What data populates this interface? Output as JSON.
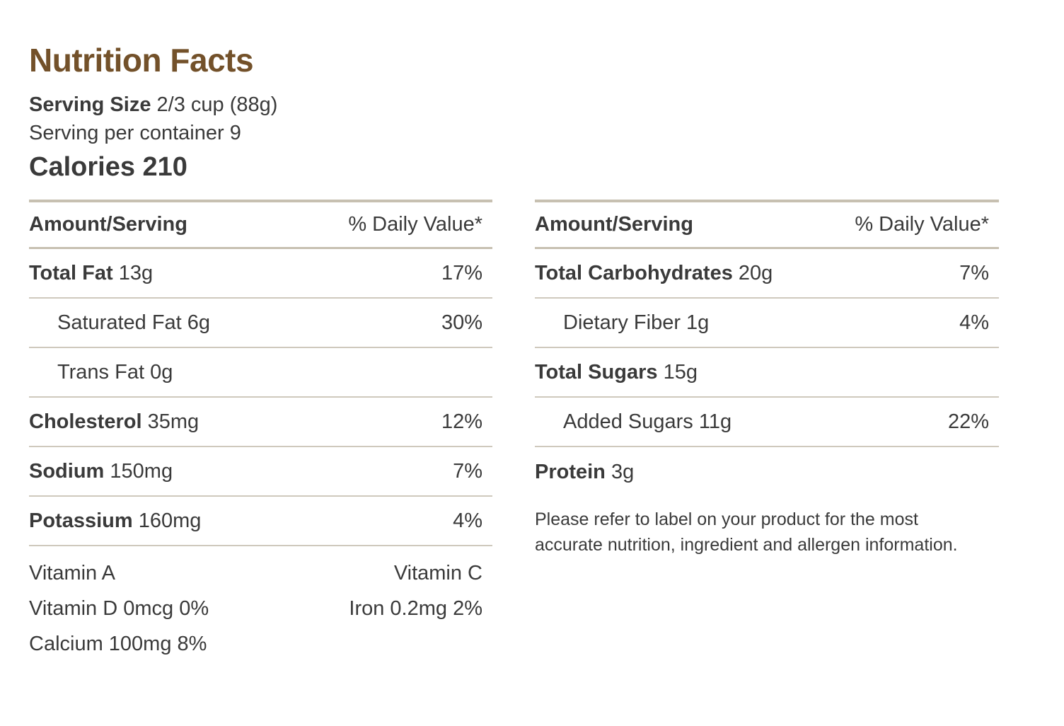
{
  "title": "Nutrition Facts",
  "serving": {
    "size_label": "Serving Size",
    "size_value": "2/3 cup (88g)",
    "per_container": "Serving per container 9"
  },
  "calories": "Calories 210",
  "header": {
    "amount_label": "Amount/Serving",
    "dv_label": "% Daily Value*"
  },
  "left_rows": [
    {
      "name": "Total Fat",
      "amount": "13g",
      "dv": "17%"
    },
    {
      "name": "Saturated Fat 6g",
      "amount": "",
      "dv": "30%"
    },
    {
      "name": "Trans Fat 0g",
      "amount": "",
      "dv": ""
    },
    {
      "name": "Cholesterol",
      "amount": "35mg",
      "dv": "12%"
    },
    {
      "name": "Sodium",
      "amount": "150mg",
      "dv": "7%"
    },
    {
      "name": "Potassium",
      "amount": "160mg",
      "dv": "4%"
    }
  ],
  "right_rows": [
    {
      "name": "Total Carbohydrates",
      "amount": "20g",
      "dv": "7%"
    },
    {
      "name": "Dietary Fiber 1g",
      "amount": "",
      "dv": "4%"
    },
    {
      "name": "Total Sugars",
      "amount": "15g",
      "dv": ""
    },
    {
      "name": "Added Sugars 11g",
      "amount": "",
      "dv": "22%"
    },
    {
      "name": "Protein",
      "amount": "3g",
      "dv": ""
    }
  ],
  "vitamins": {
    "vitamin_a": "Vitamin A",
    "vitamin_c": "Vitamin C",
    "vitamin_d": "Vitamin D 0mcg 0%",
    "iron": "Iron 0.2mg 2%",
    "calcium": "Calcium 100mg 8%"
  },
  "disclaimer": "Please refer to label on your product for the most accurate nutrition, ingredient and allergen information."
}
